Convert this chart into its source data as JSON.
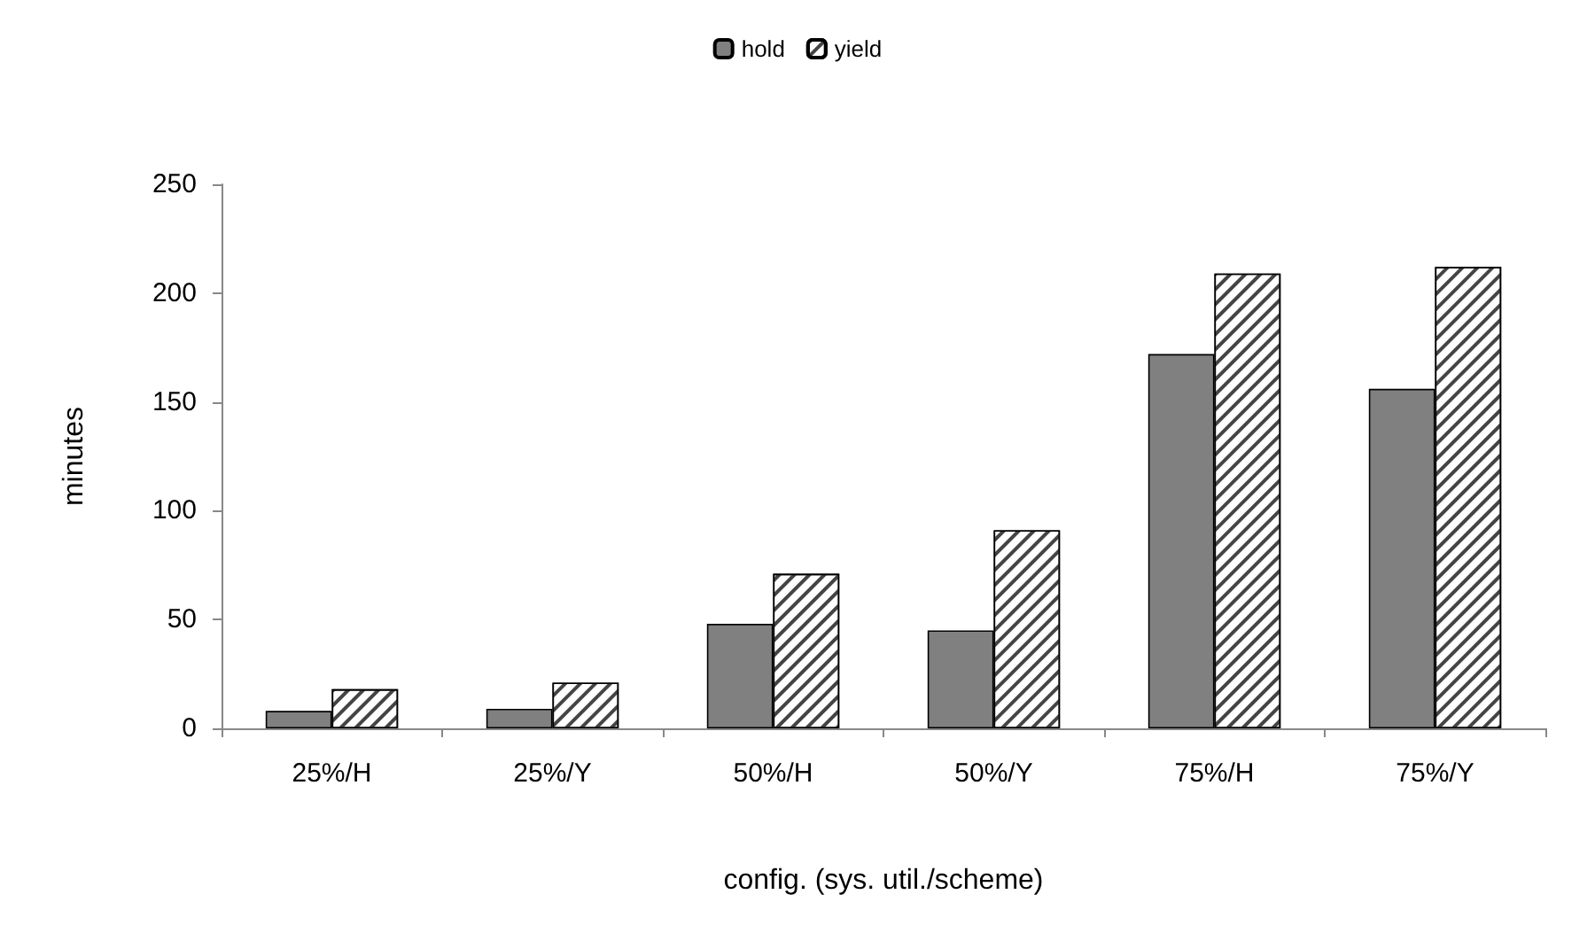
{
  "chart_data": {
    "type": "bar",
    "xlabel": "config. (sys. util./scheme)",
    "ylabel": "minutes",
    "categories": [
      "25%/H",
      "25%/Y",
      "50%/H",
      "50%/Y",
      "75%/H",
      "75%/Y"
    ],
    "series": [
      {
        "name": "hold",
        "color": "#808080",
        "values": [
          8,
          9,
          48,
          45,
          172,
          156
        ]
      },
      {
        "name": "yield",
        "color": "#ffffff",
        "values": [
          18,
          21,
          71,
          91,
          209,
          212
        ]
      }
    ],
    "ylim": [
      0,
      250
    ],
    "yticks": [
      0,
      50,
      100,
      150,
      200,
      250
    ],
    "grid": false,
    "legend": "top"
  }
}
